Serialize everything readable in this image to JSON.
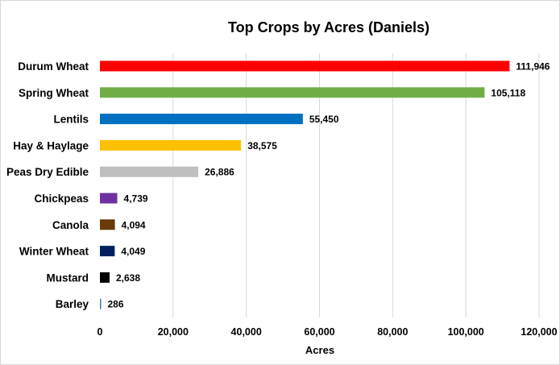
{
  "chart_data": {
    "type": "bar",
    "orientation": "horizontal",
    "title": "Top Crops by Acres (Daniels)",
    "xlabel": "Acres",
    "ylabel": "",
    "xlim": [
      0,
      120000
    ],
    "x_ticks": [
      0,
      20000,
      40000,
      60000,
      80000,
      100000,
      120000
    ],
    "x_tick_labels": [
      "0",
      "20,000",
      "40,000",
      "60,000",
      "80,000",
      "100,000",
      "120,000"
    ],
    "grid": "vertical",
    "legend": "none",
    "categories": [
      "Durum Wheat",
      "Spring Wheat",
      "Lentils",
      "Hay & Haylage",
      "Peas Dry Edible",
      "Chickpeas",
      "Canola",
      "Winter Wheat",
      "Mustard",
      "Barley"
    ],
    "values": [
      111946,
      105118,
      55450,
      38575,
      26886,
      4739,
      4094,
      4049,
      2638,
      286
    ],
    "value_labels": [
      "111,946",
      "105,118",
      "55,450",
      "38,575",
      "26,886",
      "4,739",
      "4,094",
      "4,049",
      "2,638",
      "286"
    ],
    "colors": [
      "#ff0000",
      "#70ad47",
      "#0070c0",
      "#ffc000",
      "#bfbfbf",
      "#7030a0",
      "#6b3a0c",
      "#002060",
      "#000000",
      "#4472c4"
    ]
  }
}
